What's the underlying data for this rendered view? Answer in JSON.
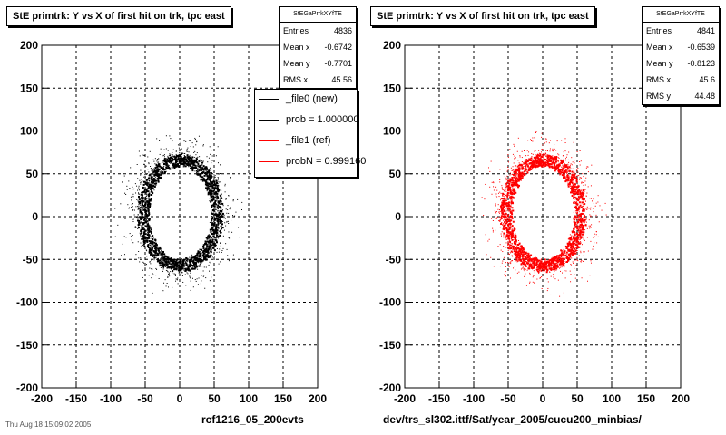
{
  "chart_data": [
    {
      "type": "scatter",
      "title": "StE primtrk: Y vs X of first hit on trk, tpc east",
      "xlim": [
        -200,
        200
      ],
      "ylim": [
        -200,
        200
      ],
      "xticks": [
        "-200",
        "-150",
        "-100",
        "-50",
        "0",
        "50",
        "100",
        "150",
        "200"
      ],
      "yticks": [
        "-200",
        "-150",
        "-100",
        "-50",
        "0",
        "50",
        "100",
        "150",
        "200"
      ],
      "grid": true,
      "marker_color": "#000000",
      "shape": "ring",
      "ring": {
        "center": [
          0,
          5
        ],
        "inner_rx": 45,
        "inner_ry": 55,
        "outer_rx": 62,
        "outer_ry": 68,
        "halo_max_radius": 100
      },
      "stats": {
        "name": "StEGaPrrkXYfTE",
        "rows": [
          {
            "label": "Entries",
            "value": "4836"
          },
          {
            "label": "Mean x",
            "value": "-0.6742"
          },
          {
            "label": "Mean y",
            "value": "-0.7701"
          },
          {
            "label": "RMS x",
            "value": "45.56"
          }
        ]
      },
      "legend": {
        "placement": "top-right",
        "entries": [
          {
            "label": "_file0 (new)",
            "color": "#000000"
          },
          {
            "label": "prob = 1.000000",
            "color": "#000000"
          },
          {
            "label": "_file1 (ref)",
            "color": "#ff0000"
          },
          {
            "label": "probN = 0.999160",
            "color": "#ff0000"
          }
        ]
      },
      "footer": "rcf1216_05_200evts"
    },
    {
      "type": "scatter",
      "title": "StE primtrk: Y vs X of first hit on trk, tpc east",
      "xlim": [
        -200,
        200
      ],
      "ylim": [
        -200,
        200
      ],
      "xticks": [
        "-200",
        "-150",
        "-100",
        "-50",
        "0",
        "50",
        "100",
        "150",
        "200"
      ],
      "yticks": [
        "-200",
        "-150",
        "-100",
        "-50",
        "0",
        "50",
        "100",
        "150",
        "200"
      ],
      "grid": true,
      "marker_color": "#ff0000",
      "shape": "ring",
      "ring": {
        "center": [
          0,
          5
        ],
        "inner_rx": 45,
        "inner_ry": 55,
        "outer_rx": 62,
        "outer_ry": 68,
        "halo_max_radius": 100
      },
      "stats": {
        "name": "StEGaPrrkXYfTE",
        "rows": [
          {
            "label": "Entries",
            "value": "4841"
          },
          {
            "label": "Mean x",
            "value": "-0.6539"
          },
          {
            "label": "Mean y",
            "value": "-0.8123"
          },
          {
            "label": "RMS x",
            "value": "45.6"
          },
          {
            "label": "RMS y",
            "value": "44.48"
          }
        ]
      },
      "footer": "dev/trs_sl302.ittf/Sat/year_2005/cucu200_minbias/"
    }
  ],
  "bottom_left_text": "Thu Aug 18 15:09:02 2005"
}
